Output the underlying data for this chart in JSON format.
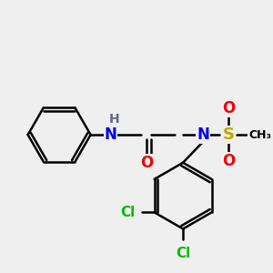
{
  "background_color": "#efefef",
  "figsize": [
    3.0,
    3.0
  ],
  "dpi": 100,
  "colors": {
    "C": "#000000",
    "N": "#0000ee",
    "O": "#ee0000",
    "S": "#bbaa00",
    "Cl": "#00bb00",
    "H": "#666688",
    "bond": "#000000"
  }
}
